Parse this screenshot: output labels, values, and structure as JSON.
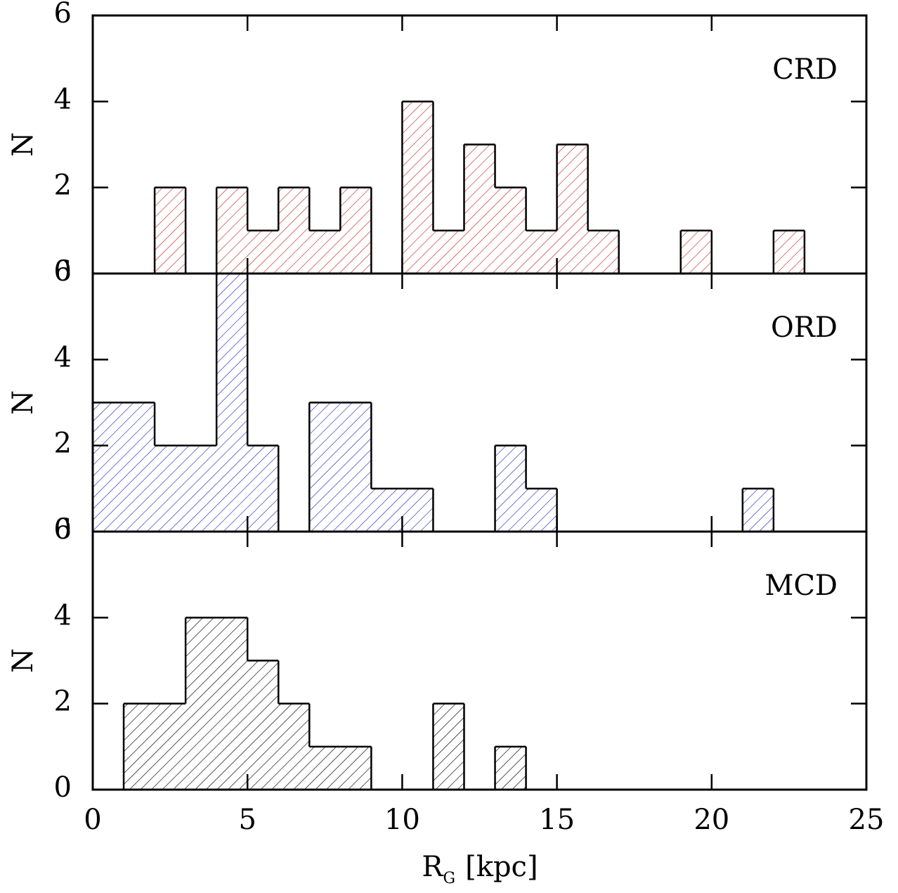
{
  "chart_data": [
    {
      "type": "histogram",
      "label": "CRD",
      "ylabel": "N",
      "color": "#c82828",
      "bins": [
        0,
        1,
        2,
        3,
        4,
        5,
        6,
        7,
        8,
        9,
        10,
        11,
        12,
        13,
        14,
        15,
        16,
        17,
        18,
        19,
        20,
        21,
        22,
        23,
        24,
        25
      ],
      "counts": [
        0,
        0,
        2,
        0,
        2,
        1,
        2,
        1,
        2,
        0,
        4,
        1,
        3,
        2,
        1,
        3,
        1,
        0,
        0,
        1,
        0,
        0,
        1,
        0,
        0
      ],
      "xlim": [
        0,
        25
      ],
      "ylim": [
        0,
        6
      ],
      "yticks": [
        0,
        2,
        4,
        6
      ]
    },
    {
      "type": "histogram",
      "label": "ORD",
      "ylabel": "N",
      "color": "#2828c8",
      "bins": [
        0,
        1,
        2,
        3,
        4,
        5,
        6,
        7,
        8,
        9,
        10,
        11,
        12,
        13,
        14,
        15,
        16,
        17,
        18,
        19,
        20,
        21,
        22,
        23,
        24,
        25
      ],
      "counts": [
        3,
        3,
        2,
        2,
        6,
        2,
        0,
        3,
        3,
        1,
        1,
        0,
        0,
        2,
        1,
        0,
        0,
        0,
        0,
        0,
        0,
        1,
        0,
        0,
        0
      ],
      "xlim": [
        0,
        25
      ],
      "ylim": [
        0,
        6
      ],
      "yticks": [
        0,
        2,
        4,
        6
      ]
    },
    {
      "type": "histogram",
      "label": "MCD",
      "ylabel": "N",
      "color": "#000000",
      "bins": [
        0,
        1,
        2,
        3,
        4,
        5,
        6,
        7,
        8,
        9,
        10,
        11,
        12,
        13,
        14,
        15,
        16,
        17,
        18,
        19,
        20,
        21,
        22,
        23,
        24,
        25
      ],
      "counts": [
        0,
        2,
        2,
        4,
        4,
        3,
        2,
        1,
        1,
        0,
        0,
        2,
        0,
        1,
        0,
        0,
        0,
        0,
        0,
        0,
        0,
        0,
        0,
        0,
        0
      ],
      "xlim": [
        0,
        25
      ],
      "ylim": [
        0,
        6
      ],
      "yticks": [
        0,
        2,
        4,
        6
      ],
      "xticks": [
        0,
        5,
        10,
        15,
        20,
        25
      ],
      "xlabel": "R",
      "xlabel_sub": "G",
      "xlabel_unit": "[kpc]"
    }
  ]
}
